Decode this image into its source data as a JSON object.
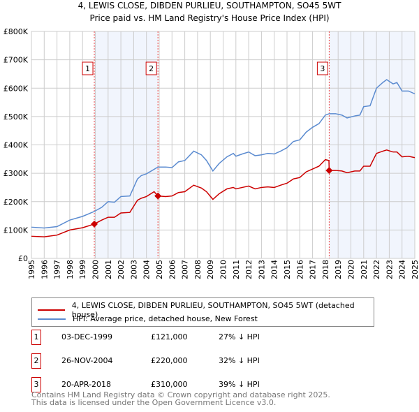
{
  "title": "4, LEWIS CLOSE, DIBDEN PURLIEU, SOUTHAMPTON, SO45 5WT",
  "subtitle": "Price paid vs. HM Land Registry's House Price Index (HPI)",
  "chart_data": {
    "type": "line",
    "title": "4, LEWIS CLOSE, DIBDEN PURLIEU, SOUTHAMPTON, SO45 5WT — Price paid vs. HM Land Registry's House Price Index (HPI)",
    "xlim": [
      1995,
      2025
    ],
    "ylim": [
      0,
      800000
    ],
    "y_ticks": [
      {
        "v": 0,
        "label": "£0"
      },
      {
        "v": 100000,
        "label": "£100K"
      },
      {
        "v": 200000,
        "label": "£200K"
      },
      {
        "v": 300000,
        "label": "£300K"
      },
      {
        "v": 400000,
        "label": "£400K"
      },
      {
        "v": 500000,
        "label": "£500K"
      },
      {
        "v": 600000,
        "label": "£600K"
      },
      {
        "v": 700000,
        "label": "£700K"
      },
      {
        "v": 800000,
        "label": "£800K"
      }
    ],
    "x_ticks": [
      "1995",
      "1996",
      "1997",
      "1998",
      "1999",
      "2000",
      "2001",
      "2002",
      "2003",
      "2004",
      "2005",
      "2006",
      "2007",
      "2008",
      "2009",
      "2010",
      "2011",
      "2012",
      "2013",
      "2014",
      "2015",
      "2016",
      "2017",
      "2018",
      "2019",
      "2020",
      "2021",
      "2022",
      "2023",
      "2024",
      "2025"
    ],
    "grid": true,
    "series": [
      {
        "name": "4, LEWIS CLOSE, DIBDEN PURLIEU, SOUTHAMPTON, SO45 5WT (detached house)",
        "color": "#cc0000",
        "x": [
          1995,
          1996,
          1997,
          1998,
          1999,
          1999.92,
          2000.5,
          2001,
          2001.5,
          2002,
          2002.7,
          2003.3,
          2003.6,
          2004,
          2004.6,
          2004.9,
          2005.5,
          2006,
          2006.5,
          2007,
          2007.7,
          2008.3,
          2008.7,
          2009.2,
          2009.7,
          2010.3,
          2010.8,
          2011,
          2011.5,
          2012,
          2012.5,
          2013,
          2013.5,
          2014,
          2014.5,
          2015,
          2015.5,
          2016,
          2016.5,
          2017,
          2017.5,
          2018,
          2018.28,
          2018.3,
          2018.8,
          2019.3,
          2019.7,
          2020.3,
          2020.7,
          2021,
          2021.5,
          2022,
          2022.5,
          2022.8,
          2023.3,
          2023.6,
          2024,
          2024.5,
          2025
        ],
        "y": [
          78,
          76,
          82,
          100,
          108,
          121,
          135,
          145,
          145,
          160,
          162,
          205,
          212,
          218,
          235,
          220,
          218,
          220,
          232,
          235,
          258,
          248,
          235,
          208,
          228,
          245,
          250,
          245,
          250,
          255,
          245,
          250,
          252,
          250,
          258,
          265,
          280,
          285,
          305,
          315,
          325,
          348,
          345,
          310,
          310,
          308,
          302,
          308,
          308,
          325,
          325,
          370,
          378,
          382,
          375,
          375,
          358,
          360,
          355
        ]
      },
      {
        "name": "HPI: Average price, detached house, New Forest",
        "color": "#5b8bd0",
        "x": [
          1995,
          1996,
          1997,
          1998,
          1999,
          1999.9,
          2000.5,
          2001,
          2001.5,
          2002,
          2002.7,
          2003.3,
          2003.6,
          2004,
          2004.9,
          2005.5,
          2006,
          2006.5,
          2007,
          2007.7,
          2008.3,
          2008.7,
          2009.2,
          2009.7,
          2010.3,
          2010.8,
          2011,
          2011.5,
          2012,
          2012.5,
          2013,
          2013.5,
          2014,
          2014.5,
          2015,
          2015.5,
          2016,
          2016.5,
          2017,
          2017.5,
          2018,
          2018.3,
          2018.8,
          2019.3,
          2019.7,
          2020.3,
          2020.7,
          2021,
          2021.5,
          2022,
          2022.5,
          2022.8,
          2023.3,
          2023.6,
          2024,
          2024.5,
          2025
        ],
        "y": [
          110,
          107,
          112,
          135,
          148,
          165,
          180,
          200,
          198,
          218,
          220,
          280,
          292,
          298,
          322,
          322,
          320,
          340,
          345,
          378,
          365,
          345,
          308,
          335,
          358,
          370,
          360,
          368,
          375,
          362,
          365,
          370,
          368,
          378,
          390,
          412,
          418,
          445,
          462,
          475,
          505,
          510,
          510,
          505,
          495,
          502,
          505,
          535,
          538,
          600,
          620,
          630,
          615,
          620,
          590,
          590,
          580
        ]
      }
    ],
    "y_unit": "thousands GBP",
    "sales": [
      {
        "n": "1",
        "x": 1999.92,
        "price": 121000,
        "date": "03-DEC-1999",
        "price_label": "£121,000",
        "hpi": "27% ↓ HPI"
      },
      {
        "n": "2",
        "x": 2004.9,
        "price": 220000,
        "date": "26-NOV-2004",
        "price_label": "£220,000",
        "hpi": "32% ↓ HPI"
      },
      {
        "n": "3",
        "x": 2018.3,
        "price": 310000,
        "date": "20-APR-2018",
        "price_label": "£310,000",
        "hpi": "39% ↓ HPI"
      }
    ],
    "shaded": [
      [
        1999.92,
        2004.9
      ],
      [
        2018.3,
        2025
      ]
    ]
  },
  "legend": {
    "red": "4, LEWIS CLOSE, DIBDEN PURLIEU, SOUTHAMPTON, SO45 5WT (detached house)",
    "blue": "HPI: Average price, detached house, New Forest"
  },
  "footer": [
    "Contains HM Land Registry data © Crown copyright and database right 2025.",
    "This data is licensed under the Open Government Licence v3.0."
  ]
}
